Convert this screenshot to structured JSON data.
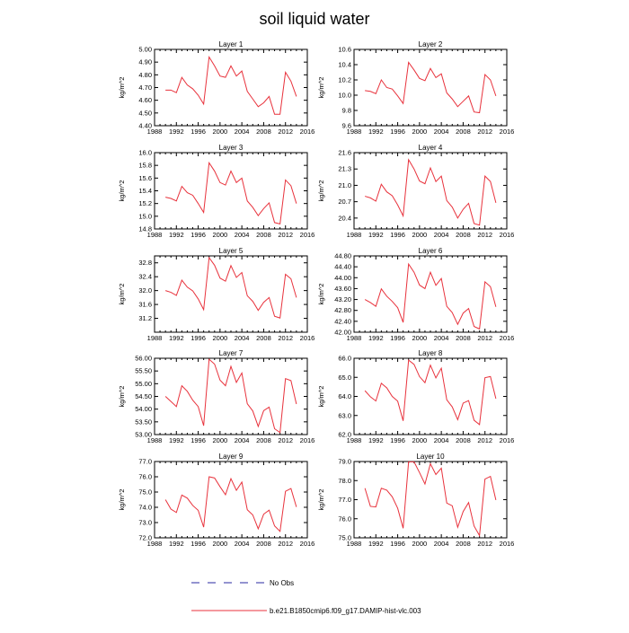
{
  "title": "soil liquid water",
  "legend": {
    "obs_label": "No Obs",
    "model_label": "b.e21.B1850cmip6.f09_g17.DAMIP-hist-vlc.003",
    "obs_color": "#2a2aa0",
    "model_color": "#e8323c"
  },
  "chart_data": [
    {
      "type": "line",
      "title": "Layer 1",
      "ylabel": "kg/m^2",
      "xlim": [
        1988,
        2016
      ],
      "xticks": [
        1988,
        1992,
        1996,
        2000,
        2004,
        2008,
        2012,
        2016
      ],
      "ylim": [
        4.4,
        5.0
      ],
      "yticks": [
        "4.40",
        "4.50",
        "4.60",
        "4.70",
        "4.80",
        "4.90",
        "5.00"
      ],
      "x": [
        1990,
        1991,
        1992,
        1993,
        1994,
        1995,
        1996,
        1997,
        1998,
        1999,
        2000,
        2001,
        2002,
        2003,
        2004,
        2005,
        2006,
        2007,
        2008,
        2009,
        2010,
        2011,
        2012,
        2013,
        2014
      ],
      "series": [
        {
          "values": [
            4.68,
            4.68,
            4.66,
            4.78,
            4.72,
            4.69,
            4.64,
            4.57,
            4.94,
            4.87,
            4.79,
            4.78,
            4.87,
            4.79,
            4.83,
            4.67,
            4.61,
            4.55,
            4.58,
            4.63,
            4.49,
            4.49,
            4.82,
            4.75,
            4.63
          ]
        }
      ]
    },
    {
      "type": "line",
      "title": "Layer 2",
      "ylabel": "kg/m^2",
      "xlim": [
        1988,
        2016
      ],
      "xticks": [
        1988,
        1992,
        1996,
        2000,
        2004,
        2008,
        2012,
        2016
      ],
      "ylim": [
        9.6,
        10.6
      ],
      "yticks": [
        "9.6",
        "9.8",
        "10.0",
        "10.2",
        "10.4",
        "10.6"
      ],
      "x": [
        1990,
        1991,
        1992,
        1993,
        1994,
        1995,
        1996,
        1997,
        1998,
        1999,
        2000,
        2001,
        2002,
        2003,
        2004,
        2005,
        2006,
        2007,
        2008,
        2009,
        2010,
        2011,
        2012,
        2013,
        2014
      ],
      "series": [
        {
          "values": [
            10.06,
            10.05,
            10.02,
            10.2,
            10.1,
            10.08,
            9.99,
            9.89,
            10.43,
            10.33,
            10.22,
            10.19,
            10.35,
            10.23,
            10.28,
            10.03,
            9.95,
            9.85,
            9.92,
            9.99,
            9.78,
            9.77,
            10.27,
            10.2,
            9.99
          ]
        }
      ]
    },
    {
      "type": "line",
      "title": "Layer 3",
      "ylabel": "kg/m^2",
      "xlim": [
        1988,
        2016
      ],
      "xticks": [
        1988,
        1992,
        1996,
        2000,
        2004,
        2008,
        2012,
        2016
      ],
      "ylim": [
        14.8,
        16.0
      ],
      "yticks": [
        "14.8",
        "15.0",
        "15.2",
        "15.4",
        "15.6",
        "15.8",
        "16.0"
      ],
      "x": [
        1990,
        1991,
        1992,
        1993,
        1994,
        1995,
        1996,
        1997,
        1998,
        1999,
        2000,
        2001,
        2002,
        2003,
        2004,
        2005,
        2006,
        2007,
        2008,
        2009,
        2010,
        2011,
        2012,
        2013,
        2014
      ],
      "series": [
        {
          "values": [
            15.3,
            15.28,
            15.24,
            15.47,
            15.37,
            15.33,
            15.2,
            15.06,
            15.84,
            15.71,
            15.53,
            15.49,
            15.71,
            15.53,
            15.6,
            15.24,
            15.14,
            15.01,
            15.12,
            15.21,
            14.9,
            14.88,
            15.57,
            15.48,
            15.2
          ]
        }
      ]
    },
    {
      "type": "line",
      "title": "Layer 4",
      "ylabel": "kg/m^2",
      "xlim": [
        1988,
        2016
      ],
      "xticks": [
        1988,
        1992,
        1996,
        2000,
        2004,
        2008,
        2012,
        2016
      ],
      "ylim": [
        20.2,
        21.6
      ],
      "yticks": [
        "20.4",
        "20.7",
        "21.0",
        "21.3",
        "21.6"
      ],
      "x": [
        1990,
        1991,
        1992,
        1993,
        1994,
        1995,
        1996,
        1997,
        1998,
        1999,
        2000,
        2001,
        2002,
        2003,
        2004,
        2005,
        2006,
        2007,
        2008,
        2009,
        2010,
        2011,
        2012,
        2013,
        2014
      ],
      "series": [
        {
          "values": [
            20.8,
            20.77,
            20.71,
            21.02,
            20.88,
            20.81,
            20.64,
            20.44,
            21.47,
            21.3,
            21.08,
            21.03,
            21.32,
            21.07,
            21.17,
            20.72,
            20.6,
            20.4,
            20.56,
            20.67,
            20.3,
            20.27,
            21.17,
            21.07,
            20.68
          ]
        }
      ]
    },
    {
      "type": "line",
      "title": "Layer 5",
      "ylabel": "kg/m^2",
      "xlim": [
        1988,
        2016
      ],
      "xticks": [
        1988,
        1992,
        1996,
        2000,
        2004,
        2008,
        2012,
        2016
      ],
      "ylim": [
        30.8,
        33.0
      ],
      "yticks": [
        "31.2",
        "31.6",
        "32.0",
        "32.4",
        "32.8"
      ],
      "x": [
        1990,
        1991,
        1992,
        1993,
        1994,
        1995,
        1996,
        1997,
        1998,
        1999,
        2000,
        2001,
        2002,
        2003,
        2004,
        2005,
        2006,
        2007,
        2008,
        2009,
        2010,
        2011,
        2012,
        2013,
        2014
      ],
      "series": [
        {
          "values": [
            32.0,
            31.95,
            31.86,
            32.3,
            32.1,
            31.99,
            31.76,
            31.45,
            32.95,
            32.73,
            32.36,
            32.27,
            32.72,
            32.38,
            32.52,
            31.85,
            31.69,
            31.43,
            31.66,
            31.8,
            31.26,
            31.21,
            32.47,
            32.34,
            31.8
          ]
        }
      ]
    },
    {
      "type": "line",
      "title": "Layer 6",
      "ylabel": "kg/m^2",
      "xlim": [
        1988,
        2016
      ],
      "xticks": [
        1988,
        1992,
        1996,
        2000,
        2004,
        2008,
        2012,
        2016
      ],
      "ylim": [
        42.0,
        44.8
      ],
      "yticks": [
        "42.00",
        "42.40",
        "42.80",
        "43.20",
        "43.60",
        "44.00",
        "44.40",
        "44.80"
      ],
      "x": [
        1990,
        1991,
        1992,
        1993,
        1994,
        1995,
        1996,
        1997,
        1998,
        1999,
        2000,
        2001,
        2002,
        2003,
        2004,
        2005,
        2006,
        2007,
        2008,
        2009,
        2010,
        2011,
        2012,
        2013,
        2014
      ],
      "series": [
        {
          "values": [
            43.2,
            43.09,
            42.95,
            43.59,
            43.32,
            43.13,
            42.9,
            42.36,
            44.5,
            44.2,
            43.73,
            43.6,
            44.2,
            43.72,
            43.97,
            42.95,
            42.72,
            42.29,
            42.7,
            42.87,
            42.21,
            42.12,
            43.85,
            43.67,
            42.93
          ]
        }
      ]
    },
    {
      "type": "line",
      "title": "Layer 7",
      "ylabel": "kg/m^2",
      "xlim": [
        1988,
        2016
      ],
      "xticks": [
        1988,
        1992,
        1996,
        2000,
        2004,
        2008,
        2012,
        2016
      ],
      "ylim": [
        53.0,
        56.0
      ],
      "yticks": [
        "53.00",
        "53.50",
        "54.00",
        "54.50",
        "55.00",
        "55.50",
        "56.00"
      ],
      "x": [
        1990,
        1991,
        1992,
        1993,
        1994,
        1995,
        1996,
        1997,
        1998,
        1999,
        2000,
        2001,
        2002,
        2003,
        2004,
        2005,
        2006,
        2007,
        2008,
        2009,
        2010,
        2011,
        2012,
        2013,
        2014
      ],
      "series": [
        {
          "values": [
            54.5,
            54.3,
            54.1,
            54.92,
            54.7,
            54.35,
            54.1,
            53.35,
            55.96,
            55.77,
            55.14,
            54.92,
            55.68,
            55.05,
            55.42,
            54.21,
            53.93,
            53.32,
            53.94,
            54.08,
            53.23,
            53.08,
            55.2,
            55.12,
            54.2
          ]
        }
      ]
    },
    {
      "type": "line",
      "title": "Layer 8",
      "ylabel": "kg/m^2",
      "xlim": [
        1988,
        2016
      ],
      "xticks": [
        1988,
        1992,
        1996,
        2000,
        2004,
        2008,
        2012,
        2016
      ],
      "ylim": [
        62.0,
        66.0
      ],
      "yticks": [
        "62.0",
        "63.0",
        "64.0",
        "65.0",
        "66.0"
      ],
      "x": [
        1990,
        1991,
        1992,
        1993,
        1994,
        1995,
        1996,
        1997,
        1998,
        1999,
        2000,
        2001,
        2002,
        2003,
        2004,
        2005,
        2006,
        2007,
        2008,
        2009,
        2010,
        2011,
        2012,
        2013,
        2014
      ],
      "series": [
        {
          "values": [
            64.3,
            63.98,
            63.76,
            64.69,
            64.45,
            64.0,
            63.75,
            62.72,
            65.9,
            65.68,
            65.04,
            64.72,
            65.64,
            64.97,
            65.48,
            63.82,
            63.45,
            62.78,
            63.65,
            63.78,
            62.75,
            62.52,
            64.98,
            65.04,
            63.88
          ]
        }
      ]
    },
    {
      "type": "line",
      "title": "Layer 9",
      "ylabel": "kg/m^2",
      "xlim": [
        1988,
        2016
      ],
      "xticks": [
        1988,
        1992,
        1996,
        2000,
        2004,
        2008,
        2012,
        2016
      ],
      "ylim": [
        72.0,
        77.0
      ],
      "yticks": [
        "72.0",
        "73.0",
        "74.0",
        "75.0",
        "76.0",
        "77.0"
      ],
      "x": [
        1990,
        1991,
        1992,
        1993,
        1994,
        1995,
        1996,
        1997,
        1998,
        1999,
        2000,
        2001,
        2002,
        2003,
        2004,
        2005,
        2006,
        2007,
        2008,
        2009,
        2010,
        2011,
        2012,
        2013,
        2014
      ],
      "series": [
        {
          "values": [
            74.5,
            73.88,
            73.66,
            74.8,
            74.6,
            74.12,
            73.8,
            72.7,
            76.0,
            75.92,
            75.35,
            74.82,
            75.88,
            75.11,
            75.65,
            73.84,
            73.5,
            72.59,
            73.55,
            73.81,
            72.78,
            72.42,
            75.05,
            75.23,
            74.02
          ]
        }
      ]
    },
    {
      "type": "line",
      "title": "Layer 10",
      "ylabel": "kg/m^2",
      "xlim": [
        1988,
        2016
      ],
      "xticks": [
        1988,
        1992,
        1996,
        2000,
        2004,
        2008,
        2012,
        2016
      ],
      "ylim": [
        75.0,
        79.0
      ],
      "yticks": [
        "75.0",
        "76.0",
        "77.0",
        "78.0",
        "79.0"
      ],
      "x": [
        1990,
        1991,
        1992,
        1993,
        1994,
        1995,
        1996,
        1997,
        1998,
        1999,
        2000,
        2001,
        2002,
        2003,
        2004,
        2005,
        2006,
        2007,
        2008,
        2009,
        2010,
        2011,
        2012,
        2013,
        2014
      ],
      "series": [
        {
          "values": [
            77.6,
            76.65,
            76.62,
            77.6,
            77.5,
            77.15,
            76.55,
            75.5,
            78.98,
            78.98,
            78.42,
            77.82,
            78.88,
            78.32,
            78.65,
            76.82,
            76.68,
            75.55,
            76.38,
            76.85,
            75.62,
            75.12,
            78.08,
            78.22,
            76.98
          ]
        }
      ]
    }
  ]
}
